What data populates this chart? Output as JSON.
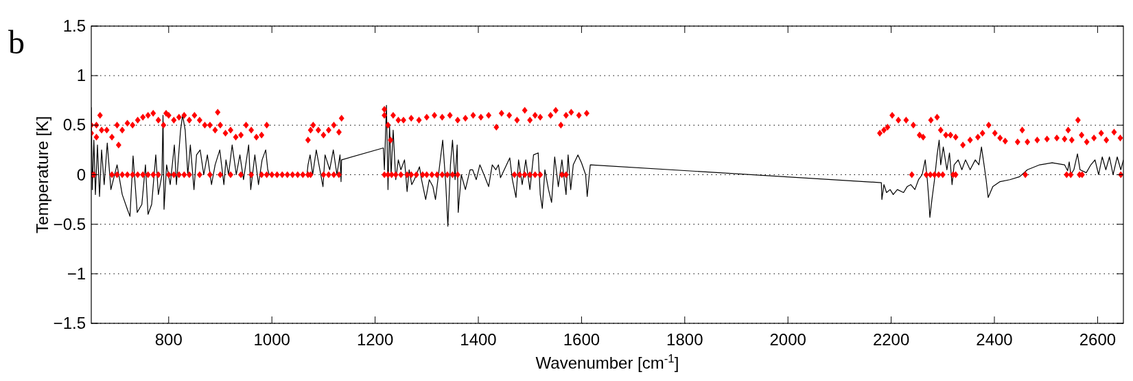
{
  "chart_data": {
    "type": "line",
    "xlabel": "Wavenumber [cm$^{-1}$]",
    "ylabel": "Temperature [K]",
    "annotations": [
      "b"
    ],
    "xlim": [
      650,
      2650
    ],
    "xticks": [
      800,
      1000,
      1200,
      1400,
      1600,
      1800,
      2000,
      2200,
      2400,
      2600
    ],
    "ylim": [
      -1.5,
      1.5
    ],
    "yticks": [
      -1.5,
      -1,
      -0.5,
      0,
      0.5,
      1,
      1.5
    ],
    "grid": "y",
    "series": [
      {
        "color": "#000000",
        "line_style": "solid",
        "x": [
          650,
          652,
          655,
          658,
          662,
          666,
          670,
          675,
          681,
          688,
          700,
          710,
          720,
          725,
          731,
          739,
          748,
          755,
          760,
          767,
          775,
          780,
          787,
          789,
          791,
          796,
          803,
          811,
          815,
          823,
          827,
          832,
          837,
          842,
          849,
          854,
          861,
          868,
          875,
          883,
          890,
          899,
          907,
          911,
          916,
          923,
          931,
          938,
          945,
          955,
          959,
          967,
          974,
          981,
          988,
          992,
          995,
          1068,
          1070,
          1074,
          1079,
          1086,
          1093,
          1099,
          1103,
          1112,
          1119,
          1126,
          1132,
          1134,
          1135,
          1216,
          1218,
          1222,
          1225,
          1228,
          1231,
          1235,
          1240,
          1245,
          1250,
          1257,
          1262,
          1266,
          1271,
          1276,
          1286,
          1290,
          1298,
          1305,
          1312,
          1317,
          1324,
          1331,
          1337,
          1341,
          1346,
          1350,
          1355,
          1359,
          1361,
          1367,
          1375,
          1384,
          1389,
          1396,
          1403,
          1411,
          1420,
          1427,
          1434,
          1439,
          1443,
          1461,
          1466,
          1473,
          1478,
          1485,
          1492,
          1500,
          1507,
          1516,
          1520,
          1524,
          1529,
          1536,
          1542,
          1548,
          1555,
          1562,
          1570,
          1574,
          1579,
          1584,
          1593,
          1600,
          1608,
          1611,
          1615,
          1617,
          2181,
          2182,
          2186,
          2191,
          2198,
          2204,
          2212,
          2224,
          2231,
          2238,
          2246,
          2253,
          2260,
          2266,
          2270,
          2273,
          2275,
          2279,
          2284,
          2289,
          2293,
          2296,
          2301,
          2308,
          2313,
          2318,
          2322,
          2330,
          2337,
          2344,
          2353,
          2363,
          2370,
          2375,
          2380,
          2384,
          2388,
          2397,
          2411,
          2430,
          2449,
          2464,
          2488,
          2512,
          2536,
          2542,
          2545,
          2548,
          2554,
          2561,
          2566,
          2578,
          2587,
          2595,
          2602,
          2609,
          2616,
          2623,
          2630,
          2638,
          2645,
          2650
        ],
        "values": [
          0.68,
          -0.15,
          0.35,
          -0.2,
          0.3,
          -0.22,
          0.25,
          -0.1,
          0.32,
          -0.15,
          0.1,
          -0.2,
          -0.35,
          -0.42,
          0.19,
          -0.38,
          -0.3,
          0.1,
          -0.4,
          -0.3,
          0.2,
          -0.2,
          0,
          0.6,
          -0.35,
          0.1,
          -0.1,
          0.3,
          -0.1,
          0.45,
          0.6,
          0.45,
          0,
          0.3,
          -0.15,
          0.2,
          0.25,
          0,
          0.2,
          -0.1,
          0.1,
          0.25,
          -0.1,
          0.15,
          0,
          0.3,
          0,
          0.2,
          -0.05,
          0.3,
          -0.15,
          0.2,
          -0.1,
          0.15,
          0.25,
          0.05,
          0,
          0,
          0.1,
          0.2,
          0,
          0.25,
          0.05,
          -0.12,
          0.2,
          0.05,
          0.25,
          0,
          0.2,
          -0.07,
          0.15,
          0.27,
          0.05,
          0.7,
          -0.15,
          0.5,
          0,
          0.45,
          -0.05,
          0.15,
          0.05,
          0.15,
          -0.17,
          0.05,
          -0.1,
          -0.05,
          0.08,
          -0.05,
          -0.25,
          -0.05,
          -0.12,
          -0.25,
          0.05,
          0.35,
          -0.1,
          -0.52,
          0.1,
          0.35,
          -0.05,
          0.3,
          -0.38,
          0,
          -0.15,
          0.05,
          0.05,
          -0.05,
          0.1,
          0,
          -0.12,
          0.1,
          0.05,
          0.1,
          -0.03,
          0.17,
          -0.05,
          -0.23,
          0.15,
          -0.1,
          0.15,
          -0.15,
          0.2,
          0.22,
          -0.2,
          -0.34,
          0.05,
          -0.15,
          -0.28,
          0.18,
          -0.12,
          0.15,
          -0.2,
          0.2,
          -0.15,
          0.1,
          0.2,
          0.12,
          0,
          -0.22,
          0,
          0.1,
          -0.08,
          -0.25,
          -0.1,
          -0.18,
          -0.15,
          -0.2,
          -0.15,
          -0.18,
          -0.12,
          -0.1,
          -0.15,
          -0.05,
          0,
          0.15,
          -0.05,
          -0.25,
          -0.43,
          -0.25,
          -0.05,
          0.2,
          0.35,
          0.1,
          0.28,
          0.05,
          0.22,
          -0.1,
          0.1,
          0.15,
          0.05,
          0.15,
          0.05,
          0.15,
          0.1,
          0.28,
          0.1,
          -0.05,
          -0.23,
          -0.12,
          -0.07,
          -0.05,
          -0.02,
          0.05,
          0.1,
          0.12,
          0.1,
          0.04,
          0.13,
          0,
          0.05,
          0.21,
          0.05,
          0.02,
          0.1,
          0.15,
          0,
          0.18,
          0.05,
          0.18,
          0,
          0.18,
          0.05,
          0.15
        ]
      },
      {
        "type": "scatter",
        "color": "#ff0000",
        "marker": "diamond",
        "x": [
          650,
          650,
          660,
          660,
          667,
          670,
          680,
          690,
          700,
          703,
          710,
          720,
          730,
          740,
          750,
          760,
          770,
          780,
          790,
          795,
          800,
          810,
          820,
          830,
          840,
          850,
          860,
          870,
          880,
          890,
          895,
          900,
          910,
          920,
          930,
          940,
          950,
          960,
          970,
          980,
          990,
          1070,
          1075,
          1080,
          1090,
          1100,
          1110,
          1120,
          1130,
          1135,
          1218,
          1218,
          1225,
          1230,
          1235,
          1245,
          1255,
          1270,
          1285,
          1300,
          1315,
          1330,
          1345,
          1360,
          1375,
          1390,
          1405,
          1420,
          1435,
          1445,
          1460,
          1475,
          1490,
          1500,
          1510,
          1520,
          1540,
          1550,
          1560,
          1570,
          1580,
          1595,
          1610,
          2178,
          2186,
          2193,
          2202,
          2214,
          2229,
          2243,
          2255,
          2262,
          2277,
          2289,
          2296,
          2306,
          2315,
          2325,
          2339,
          2353,
          2368,
          2377,
          2389,
          2401,
          2411,
          2421,
          2445,
          2454,
          2464,
          2483,
          2502,
          2521,
          2536,
          2543,
          2550,
          2562,
          2569,
          2579,
          2593,
          2607,
          2617,
          2632,
          2644,
          650,
          655,
          690,
          700,
          710,
          720,
          730,
          740,
          750,
          760,
          770,
          780,
          800,
          810,
          820,
          830,
          840,
          860,
          880,
          900,
          920,
          940,
          960,
          980,
          990,
          1000,
          1010,
          1020,
          1030,
          1040,
          1050,
          1060,
          1070,
          1075,
          1100,
          1110,
          1120,
          1130,
          1218,
          1225,
          1232,
          1240,
          1250,
          1262,
          1270,
          1280,
          1292,
          1300,
          1310,
          1320,
          1330,
          1340,
          1350,
          1360,
          1470,
          1480,
          1490,
          1500,
          1510,
          1520,
          1562,
          1570,
          2240,
          2268,
          2276,
          2284,
          2292,
          2300,
          2320,
          2325,
          2460,
          2540,
          2548,
          2565,
          2570,
          2645
        ],
        "values": [
          0.42,
          0.5,
          0.5,
          0.38,
          0.6,
          0.45,
          0.45,
          0.38,
          0.5,
          0.3,
          0.45,
          0.52,
          0.5,
          0.55,
          0.58,
          0.6,
          0.62,
          0.55,
          0.5,
          0.62,
          0.6,
          0.55,
          0.58,
          0.6,
          0.55,
          0.6,
          0.55,
          0.5,
          0.5,
          0.45,
          0.63,
          0.5,
          0.42,
          0.45,
          0.38,
          0.4,
          0.5,
          0.45,
          0.38,
          0.4,
          0.5,
          0.35,
          0.45,
          0.5,
          0.45,
          0.4,
          0.45,
          0.5,
          0.43,
          0.57,
          0.6,
          0.66,
          0.5,
          0.35,
          0.6,
          0.55,
          0.55,
          0.57,
          0.55,
          0.58,
          0.6,
          0.58,
          0.6,
          0.55,
          0.57,
          0.6,
          0.58,
          0.6,
          0.48,
          0.62,
          0.6,
          0.55,
          0.65,
          0.55,
          0.6,
          0.58,
          0.6,
          0.65,
          0.5,
          0.6,
          0.63,
          0.6,
          0.62,
          0.42,
          0.45,
          0.48,
          0.6,
          0.55,
          0.55,
          0.5,
          0.4,
          0.38,
          0.55,
          0.58,
          0.45,
          0.4,
          0.4,
          0.38,
          0.3,
          0.35,
          0.38,
          0.42,
          0.5,
          0.42,
          0.37,
          0.34,
          0.33,
          0.45,
          0.33,
          0.35,
          0.36,
          0.37,
          0.36,
          0.45,
          0.35,
          0.55,
          0.4,
          0.33,
          0.37,
          0.42,
          0.35,
          0.43,
          0.37,
          0,
          0,
          0,
          0,
          0,
          0,
          0,
          0,
          0,
          0,
          0,
          0,
          0,
          0,
          0,
          0,
          0,
          0,
          0,
          0,
          0,
          0,
          0,
          0,
          0,
          0,
          0,
          0,
          0,
          0,
          0,
          0,
          0,
          0,
          0,
          0,
          0,
          0,
          0,
          0,
          0,
          0,
          0,
          0,
          0,
          0,
          0,
          0,
          0,
          0,
          0,
          0,
          0,
          0,
          0,
          0,
          0,
          0,
          0,
          0,
          0,
          0,
          0,
          0,
          0,
          0,
          0,
          0,
          0,
          0,
          0,
          0,
          0,
          0,
          0,
          0
        ]
      }
    ]
  }
}
